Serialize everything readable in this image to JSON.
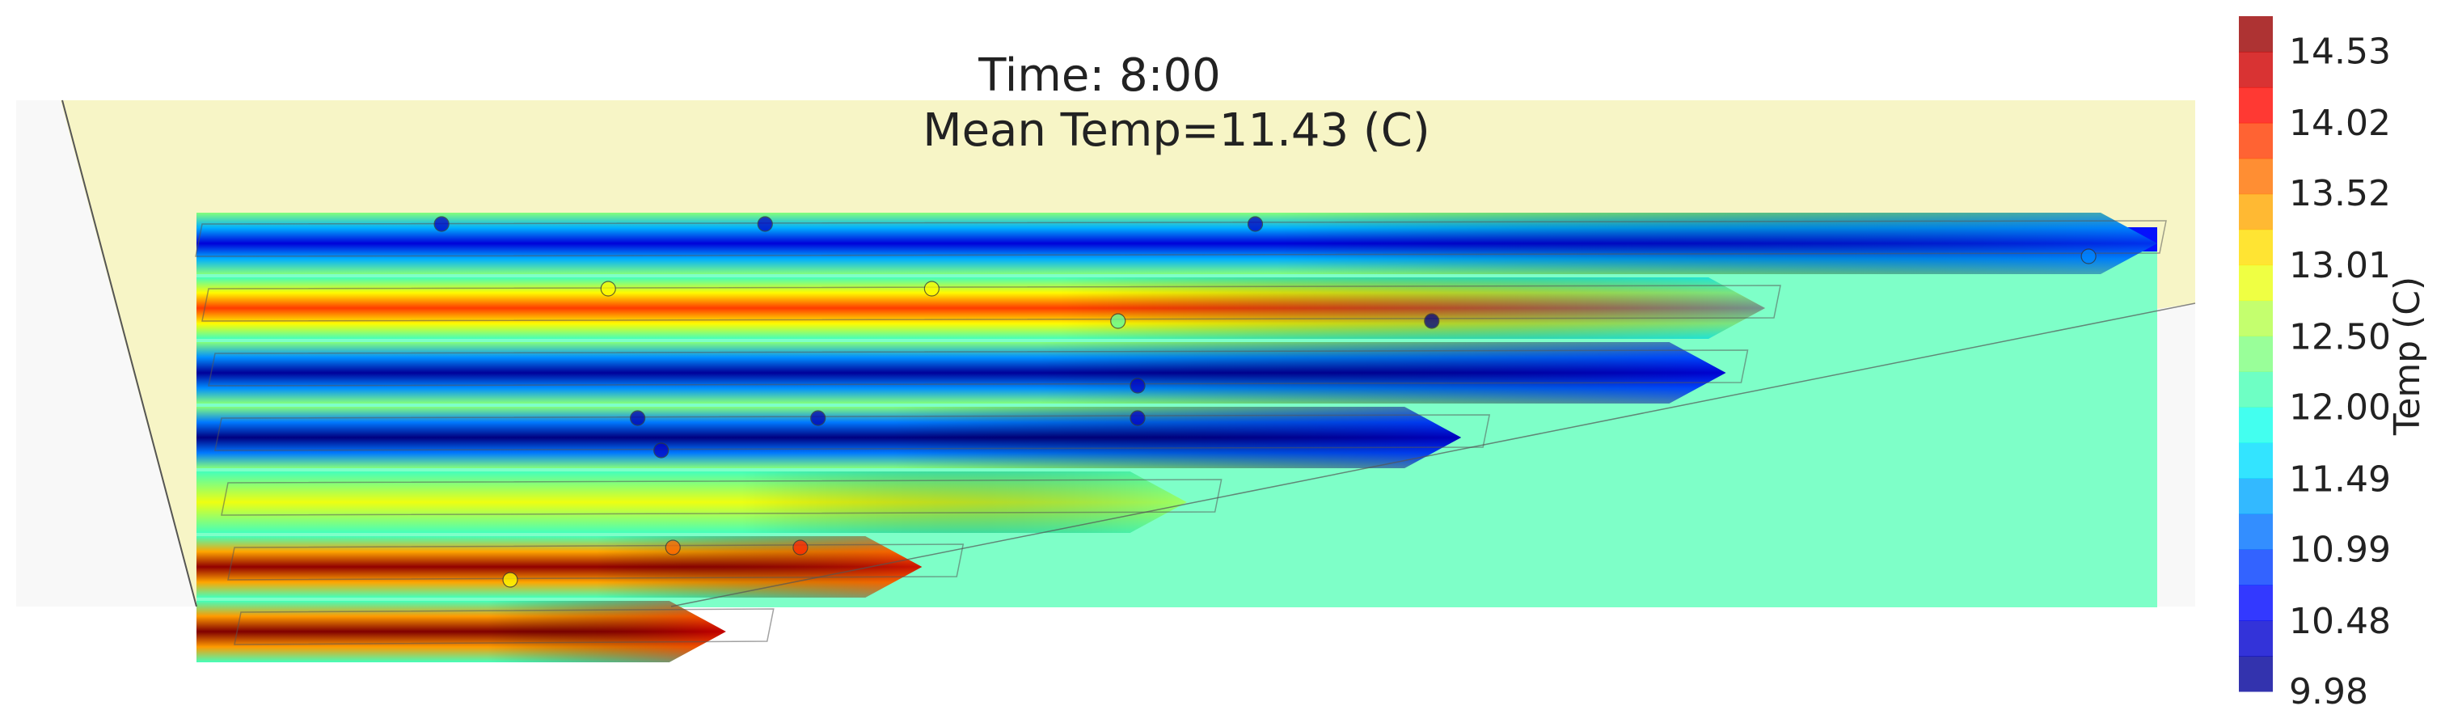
{
  "chart_data": {
    "type": "heatmap",
    "title": "Time: 8:00",
    "subtitle": "Mean Temp=11.43 (C)",
    "colorbar": {
      "label": "Temp (C)",
      "ticks": [
        "9.98",
        "10.48",
        "10.99",
        "11.49",
        "12.00",
        "12.50",
        "13.01",
        "13.52",
        "14.02",
        "14.53"
      ],
      "range": [
        9.98,
        14.78
      ],
      "colormap": "jet"
    },
    "background_temp": 12.3,
    "bands": [
      {
        "row": 1,
        "start_temp": 10.4,
        "end_temp": 11.0,
        "extent": 1.0
      },
      {
        "row": 2,
        "start_temp": 13.9,
        "end_temp": 11.6,
        "extent": 0.8
      },
      {
        "row": 3,
        "start_temp": 10.1,
        "end_temp": 10.6,
        "extent": 0.78
      },
      {
        "row": 4,
        "start_temp": 9.9,
        "end_temp": 10.5,
        "extent": 0.645
      },
      {
        "row": 5,
        "start_temp": 12.9,
        "end_temp": 12.2,
        "extent": 0.505
      },
      {
        "row": 6,
        "start_temp": 14.7,
        "end_temp": 14.0,
        "extent": 0.37
      },
      {
        "row": 7,
        "start_temp": 14.8,
        "end_temp": 14.2,
        "extent": 0.27
      }
    ],
    "sensors": [
      {
        "row": 1,
        "pos": 0.125,
        "temp": 10.3
      },
      {
        "row": 1,
        "pos": 0.29,
        "temp": 10.3
      },
      {
        "row": 1,
        "pos": 0.54,
        "temp": 10.3
      },
      {
        "row": 1.5,
        "pos": 0.965,
        "temp": 11.2
      },
      {
        "row": 2,
        "pos": 0.21,
        "temp": 13.0
      },
      {
        "row": 2,
        "pos": 0.375,
        "temp": 13.0
      },
      {
        "row": 2.5,
        "pos": 0.47,
        "temp": 12.2
      },
      {
        "row": 2.5,
        "pos": 0.63,
        "temp": 10.0
      },
      {
        "row": 3.5,
        "pos": 0.48,
        "temp": 10.3
      },
      {
        "row": 4,
        "pos": 0.225,
        "temp": 10.2
      },
      {
        "row": 4,
        "pos": 0.317,
        "temp": 10.2
      },
      {
        "row": 4,
        "pos": 0.48,
        "temp": 10.3
      },
      {
        "row": 4.5,
        "pos": 0.237,
        "temp": 10.3
      },
      {
        "row": 6,
        "pos": 0.243,
        "temp": 13.7
      },
      {
        "row": 6,
        "pos": 0.308,
        "temp": 14.0
      },
      {
        "row": 6.5,
        "pos": 0.16,
        "temp": 13.0
      }
    ],
    "colors": {
      "slab": "#f7f5c6",
      "background_region": "#7effc8",
      "outline": "#555555"
    }
  }
}
